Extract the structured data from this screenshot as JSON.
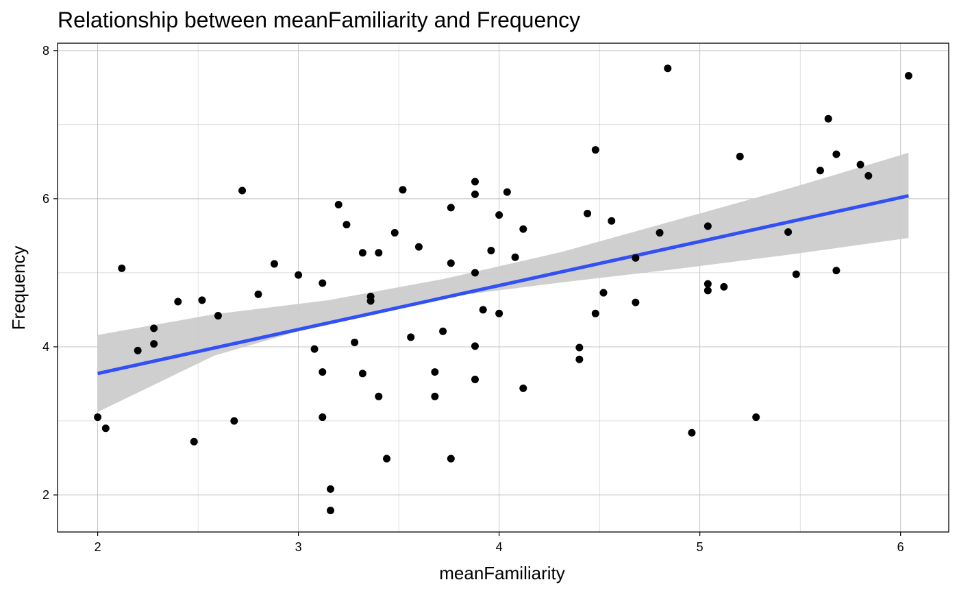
{
  "chart_data": {
    "type": "scatter",
    "title": "Relationship between meanFamiliarity and Frequency",
    "xlabel": "meanFamiliarity",
    "ylabel": "Frequency",
    "xlim": [
      1.8,
      6.24
    ],
    "ylim": [
      1.5,
      8.1
    ],
    "xticks": [
      2,
      3,
      4,
      5,
      6
    ],
    "yticks": [
      2,
      4,
      6,
      8
    ],
    "grid": true,
    "points": [
      [
        2.0,
        3.05
      ],
      [
        2.04,
        2.9
      ],
      [
        2.12,
        5.06
      ],
      [
        2.2,
        3.95
      ],
      [
        2.28,
        4.25
      ],
      [
        2.28,
        4.04
      ],
      [
        2.4,
        4.61
      ],
      [
        2.48,
        2.72
      ],
      [
        2.52,
        4.63
      ],
      [
        2.6,
        4.42
      ],
      [
        2.68,
        3.0
      ],
      [
        2.72,
        6.11
      ],
      [
        2.8,
        4.71
      ],
      [
        2.88,
        5.12
      ],
      [
        3.0,
        4.97
      ],
      [
        3.08,
        3.97
      ],
      [
        3.12,
        4.86
      ],
      [
        3.12,
        3.66
      ],
      [
        3.12,
        3.05
      ],
      [
        3.16,
        2.08
      ],
      [
        3.16,
        1.79
      ],
      [
        3.2,
        5.92
      ],
      [
        3.24,
        5.65
      ],
      [
        3.28,
        4.06
      ],
      [
        3.32,
        5.27
      ],
      [
        3.32,
        3.64
      ],
      [
        3.36,
        4.68
      ],
      [
        3.36,
        4.62
      ],
      [
        3.4,
        5.27
      ],
      [
        3.4,
        3.33
      ],
      [
        3.44,
        2.49
      ],
      [
        3.48,
        5.54
      ],
      [
        3.52,
        6.12
      ],
      [
        3.56,
        4.13
      ],
      [
        3.6,
        5.35
      ],
      [
        3.68,
        3.66
      ],
      [
        3.68,
        3.33
      ],
      [
        3.72,
        4.21
      ],
      [
        3.76,
        5.88
      ],
      [
        3.76,
        5.13
      ],
      [
        3.76,
        2.49
      ],
      [
        3.88,
        6.23
      ],
      [
        3.88,
        6.06
      ],
      [
        3.88,
        5.0
      ],
      [
        3.88,
        4.01
      ],
      [
        3.88,
        3.56
      ],
      [
        3.92,
        4.5
      ],
      [
        3.96,
        5.3
      ],
      [
        4.0,
        5.78
      ],
      [
        4.0,
        4.45
      ],
      [
        4.04,
        6.09
      ],
      [
        4.08,
        5.21
      ],
      [
        4.12,
        5.59
      ],
      [
        4.12,
        3.44
      ],
      [
        4.4,
        3.99
      ],
      [
        4.4,
        3.83
      ],
      [
        4.44,
        5.8
      ],
      [
        4.48,
        6.66
      ],
      [
        4.48,
        4.45
      ],
      [
        4.52,
        4.73
      ],
      [
        4.56,
        5.7
      ],
      [
        4.68,
        5.2
      ],
      [
        4.68,
        4.6
      ],
      [
        4.8,
        5.54
      ],
      [
        4.84,
        7.76
      ],
      [
        4.96,
        2.84
      ],
      [
        5.04,
        5.63
      ],
      [
        5.04,
        4.85
      ],
      [
        5.04,
        4.76
      ],
      [
        5.12,
        4.81
      ],
      [
        5.2,
        6.57
      ],
      [
        5.28,
        3.05
      ],
      [
        5.44,
        5.55
      ],
      [
        5.48,
        4.98
      ],
      [
        5.6,
        6.38
      ],
      [
        5.64,
        7.08
      ],
      [
        5.68,
        6.6
      ],
      [
        5.68,
        5.03
      ],
      [
        5.8,
        6.46
      ],
      [
        5.84,
        6.31
      ],
      [
        6.04,
        7.66
      ]
    ],
    "trend_line": {
      "type": "linear",
      "x": [
        2.0,
        6.04
      ],
      "y": [
        3.64,
        6.04
      ],
      "ci_lower": [
        3.12,
        3.88,
        4.33,
        4.67,
        4.87,
        5.05,
        5.25,
        5.47
      ],
      "ci_upper": [
        4.16,
        4.44,
        4.63,
        4.92,
        5.28,
        5.71,
        6.15,
        6.62
      ],
      "ci_x": [
        2.0,
        2.58,
        3.15,
        3.73,
        4.31,
        4.88,
        5.46,
        6.04
      ]
    },
    "colors": {
      "points": "#000000",
      "trend": "#3150f5",
      "ci_band": "#cccccc",
      "grid": "#bfbfbf",
      "axis": "#000000"
    }
  }
}
